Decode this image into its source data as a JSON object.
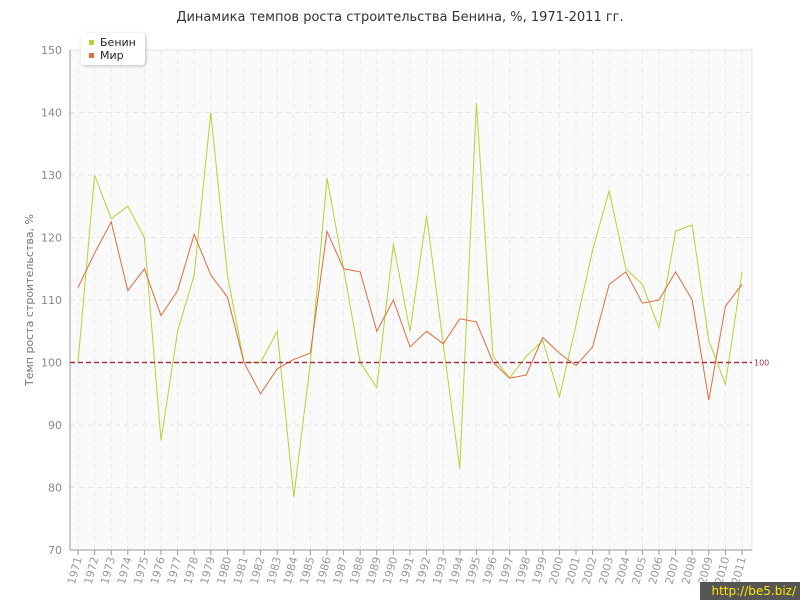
{
  "chart_data": {
    "type": "line",
    "title": "Динамика темпов роста строительства Бенина, %, 1971-2011 гг.",
    "ylabel": "Темп роста строительства, %",
    "xlabel": "",
    "ylim": [
      70,
      150
    ],
    "yticks": [
      70,
      80,
      90,
      100,
      110,
      120,
      130,
      140,
      150
    ],
    "x": [
      "1971",
      "1972",
      "1973",
      "1974",
      "1975",
      "1976",
      "1977",
      "1978",
      "1979",
      "1980",
      "1981",
      "1982",
      "1983",
      "1984",
      "1985",
      "1986",
      "1987",
      "1988",
      "1989",
      "1990",
      "1991",
      "1992",
      "1993",
      "1994",
      "1995",
      "1996",
      "1997",
      "1998",
      "1999",
      "2000",
      "2001",
      "2002",
      "2003",
      "2004",
      "2005",
      "2006",
      "2007",
      "2008",
      "2009",
      "2010",
      "2011"
    ],
    "series": [
      {
        "name": "Бенин",
        "color": "#b5d335",
        "values": [
          100,
          130,
          123,
          125,
          120,
          87.5,
          105,
          114,
          140,
          114,
          100,
          100,
          105,
          78.5,
          100,
          129.5,
          115,
          100,
          96,
          119,
          105,
          123.5,
          103,
          83,
          141.5,
          101,
          97.5,
          101,
          103.5,
          94.5,
          106,
          118,
          127.5,
          115,
          112.5,
          105.5,
          121,
          122,
          103.5,
          96.5,
          114.5
        ]
      },
      {
        "name": "Мир",
        "color": "#e26b3e",
        "values": [
          112,
          117.5,
          122.5,
          111.5,
          115,
          107.5,
          111.5,
          120.5,
          114,
          110.5,
          100,
          95,
          99,
          100.5,
          101.5,
          121,
          115,
          114.5,
          105,
          110,
          102.5,
          105,
          103,
          107,
          106.5,
          100,
          97.5,
          98,
          104,
          101.5,
          99.5,
          102.5,
          112.5,
          114.5,
          109.5,
          110,
          114.5,
          110,
          94,
          109,
          112.5
        ]
      }
    ],
    "reference_line": {
      "value": 100,
      "label": "100",
      "color": "#a0334a"
    },
    "legend_position": "top-left",
    "grid": true
  },
  "watermark": "http://be5.biz/"
}
